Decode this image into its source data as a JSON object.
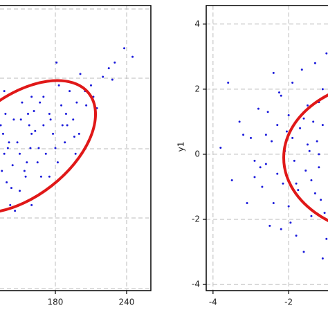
{
  "chart_data": [
    {
      "type": "scatter",
      "xlim": [
        133.4,
        260.4
      ],
      "ylim": [
        0,
        100
      ],
      "xticks": [
        180,
        240
      ],
      "grid": true,
      "series": [
        {
          "color": "#1a1adb",
          "x": [
            140,
            150,
            160,
            145,
            135,
            170,
            155,
            165,
            175,
            185,
            195,
            205,
            200,
            190,
            180,
            150,
            142,
            138,
            160,
            172,
            148,
            158,
            168,
            178,
            188,
            198,
            210,
            220,
            230,
            215,
            225,
            192,
            182,
            162,
            152,
            144,
            136,
            139,
            147,
            156,
            166,
            176,
            186,
            196,
            206,
            170,
            163,
            154,
            141,
            137,
            245,
            238,
            160,
            175,
            143,
            134,
            157,
            167,
            183,
            201,
            212,
            228,
            197,
            151,
            146,
            171,
            159,
            137,
            181,
            189
          ],
          "values": [
            50,
            48,
            55,
            60,
            42,
            58,
            40,
            45,
            62,
            65,
            60,
            70,
            55,
            58,
            50,
            35,
            30,
            62,
            68,
            48,
            52,
            58,
            40,
            55,
            52,
            66,
            72,
            75,
            80,
            64,
            78,
            70,
            45,
            63,
            66,
            44,
            55,
            38,
            70,
            45,
            50,
            60,
            58,
            54,
            65,
            68,
            56,
            42,
            52,
            48,
            82,
            85,
            30,
            40,
            36,
            58,
            62,
            66,
            72,
            76,
            68,
            74,
            48,
            60,
            28,
            35,
            50,
            70,
            80,
            62
          ]
        }
      ]
    },
    {
      "type": "scatter",
      "xlim": [
        -4.18,
        -0.96
      ],
      "ylim": [
        -4.19,
        4.57
      ],
      "xticks": [
        -4,
        -2
      ],
      "yticks": [
        -4,
        -2,
        0,
        2,
        4
      ],
      "grid": true,
      "y_label": "y1",
      "series": [
        {
          "color": "#1a1adb",
          "x": [
            -3.8,
            -3.5,
            -3.3,
            -3.1,
            -3.0,
            -2.9,
            -2.8,
            -2.7,
            -2.6,
            -2.5,
            -2.4,
            -2.3,
            -2.2,
            -2.1,
            -2.0,
            -1.9,
            -1.8,
            -1.7,
            -1.6,
            -1.5,
            -1.4,
            -1.3,
            -1.2,
            -1.1,
            -1.0,
            -2.6,
            -2.3,
            -2.0,
            -1.8,
            -1.5,
            -1.3,
            -1.1,
            -2.9,
            -2.4,
            -2.2,
            -1.9,
            -1.6,
            -1.4,
            -1.2,
            -1.05,
            -3.6,
            -3.2,
            -2.75,
            -2.45,
            -2.15,
            -1.85,
            -1.55,
            -1.25,
            -1.15,
            -1.35,
            -1.65,
            -1.95,
            -2.05,
            -1.75,
            -1.45,
            -2.25,
            -2.55,
            -1.0,
            -1.1,
            -1.2
          ],
          "values": [
            0.2,
            -0.8,
            1.0,
            -1.5,
            0.5,
            -0.2,
            1.4,
            -1.0,
            0.6,
            -2.2,
            2.5,
            -0.6,
            1.8,
            0.1,
            -1.6,
            2.2,
            -2.5,
            0.8,
            -3.0,
            1.5,
            -1.9,
            2.8,
            -0.4,
            0.9,
            -2.6,
            -0.3,
            0.9,
            1.2,
            -0.9,
            0.3,
            -1.2,
            2.0,
            -0.7,
            -1.5,
            -2.3,
            0.5,
            1.1,
            -0.8,
            1.6,
            -1.8,
            2.2,
            0.6,
            -0.4,
            0.4,
            -0.9,
            -0.2,
            -0.5,
            0.4,
            -1.4,
            1.0,
            2.6,
            -2.1,
            0.7,
            -1.1,
            0.1,
            1.9,
            1.3,
            3.1,
            -3.2,
            0.0
          ]
        }
      ]
    }
  ]
}
